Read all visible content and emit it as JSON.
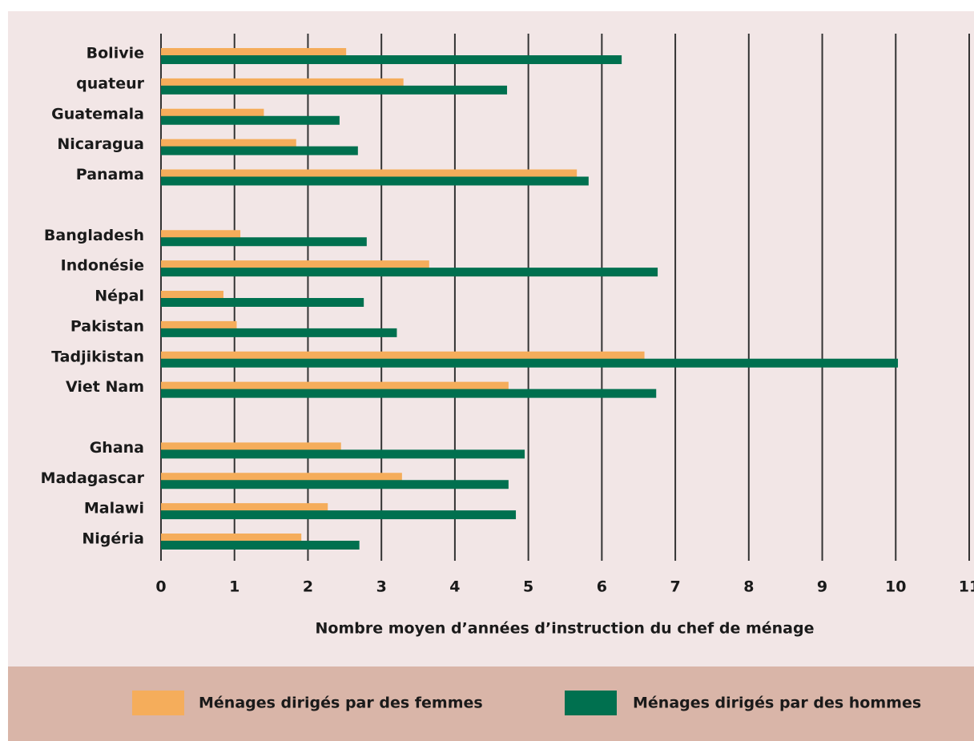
{
  "chart_data": {
    "type": "hbar",
    "xlabel": "Nombre moyen d’années d’instruction du chef de ménage",
    "categories": [
      "Bolivie",
      "quateur",
      "Guatemala",
      "Nicaragua",
      "Panama",
      null,
      "Bangladesh",
      "Indonésie",
      "Népal",
      "Pakistan",
      "Tadjikistan",
      "Viet Nam",
      null,
      "Ghana",
      "Madagascar",
      "Malawi",
      "Nigéria"
    ],
    "series": [
      {
        "name": "Ménages dirigés par des femmes",
        "color": "#f5ad5b",
        "values": [
          2.52,
          3.3,
          1.4,
          1.84,
          5.66,
          null,
          1.08,
          3.65,
          0.85,
          1.03,
          6.58,
          4.73,
          null,
          2.45,
          3.28,
          2.27,
          1.91
        ]
      },
      {
        "name": "Ménages dirigés par des hommes",
        "color": "#00704f",
        "values": [
          6.27,
          4.71,
          2.43,
          2.68,
          5.82,
          null,
          2.8,
          6.76,
          2.76,
          3.21,
          10.03,
          6.74,
          null,
          4.95,
          4.73,
          4.83,
          2.7
        ]
      }
    ],
    "xlim": [
      0,
      11
    ],
    "xticks": [
      0,
      1,
      2,
      3,
      4,
      5,
      6,
      7,
      8,
      9,
      10,
      11
    ],
    "grid": true,
    "legend": "bottom"
  }
}
